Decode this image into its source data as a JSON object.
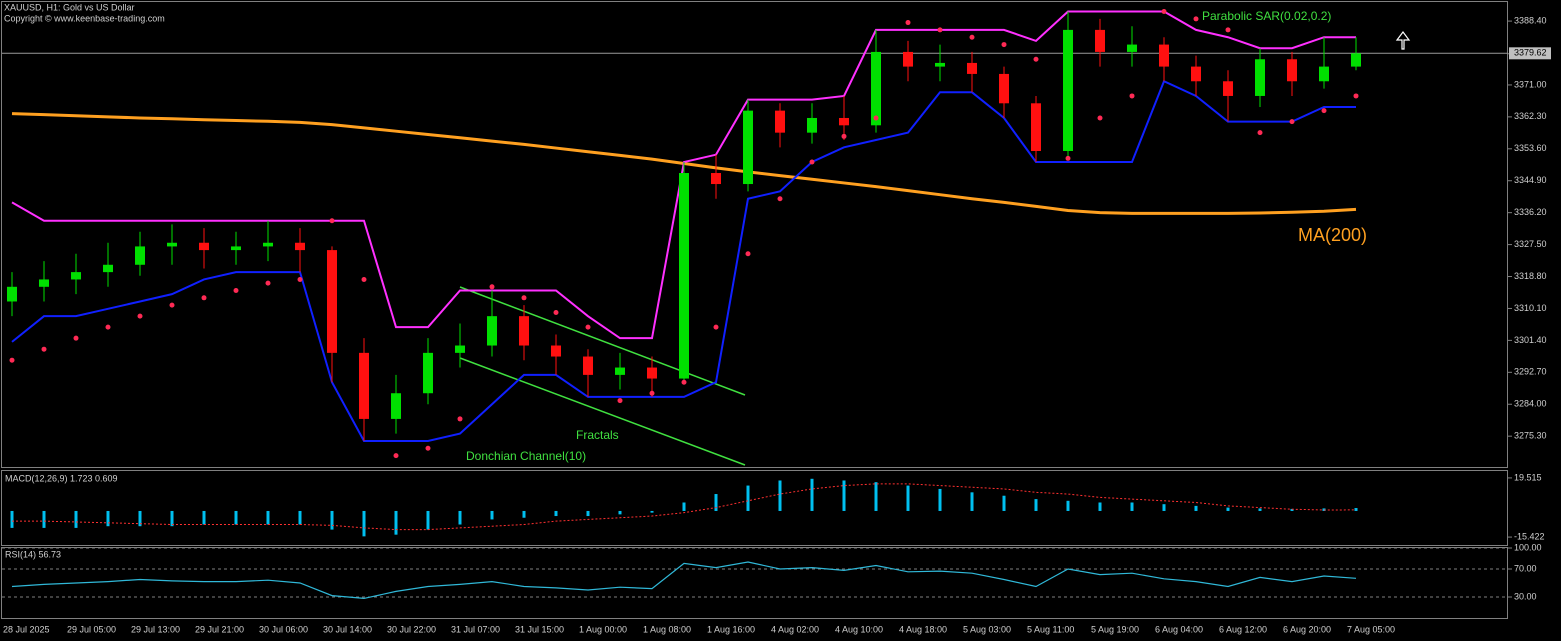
{
  "chart_data": [
    {
      "type": "candlestick",
      "title": "XAUUSD, H1:  Gold vs US Dollar",
      "subtitle": "Copyright © www.keenbase-trading.com",
      "categories": [
        "28 Jul 2025",
        null,
        "29 Jul 05:00",
        null,
        "29 Jul 13:00",
        null,
        "29 Jul 21:00",
        null,
        "30 Jul 06:00",
        null,
        "30 Jul 14:00",
        null,
        "30 Jul 22:00",
        null,
        "31 Jul 07:00",
        null,
        "31 Jul 15:00",
        null,
        "1 Aug 00:00",
        null,
        "1 Aug 08:00",
        null,
        "1 Aug 16:00",
        null,
        "4 Aug 02:00",
        null,
        "4 Aug 10:00",
        null,
        "4 Aug 18:00",
        null,
        "5 Aug 03:00",
        null,
        "5 Aug 11:00",
        null,
        "5 Aug 19:00",
        null,
        "6 Aug 04:00",
        null,
        "6 Aug 12:00",
        null,
        "6 Aug 20:00",
        null,
        "7 Aug 05:00"
      ],
      "open": [
        3312,
        3316,
        3318,
        3320,
        3322,
        3327,
        3328,
        3326,
        3327,
        3328,
        3326,
        3298,
        3280,
        3287,
        3298,
        3300,
        3308,
        3300,
        3297,
        3292,
        3294,
        3291,
        3347,
        3344,
        3364,
        3358,
        3362,
        3360,
        3380,
        3376,
        3377,
        3374,
        3366,
        3353,
        3386,
        3380,
        3382,
        3376,
        3372,
        3368,
        3378,
        3372,
        3376
      ],
      "high": [
        3320,
        3323,
        3325,
        3328,
        3331,
        3333,
        3332,
        3331,
        3334,
        3332,
        3327,
        3302,
        3292,
        3302,
        3306,
        3315,
        3311,
        3303,
        3299,
        3298,
        3297,
        3350,
        3352,
        3367,
        3366,
        3366,
        3368,
        3386,
        3383,
        3382,
        3380,
        3376,
        3368,
        3391,
        3389,
        3387,
        3384,
        3379,
        3375,
        3381,
        3380,
        3384,
        3384
      ],
      "low": [
        3308,
        3312,
        3314,
        3316,
        3319,
        3322,
        3321,
        3322,
        3323,
        3320,
        3290,
        3274,
        3276,
        3284,
        3294,
        3297,
        3296,
        3292,
        3286,
        3288,
        3286,
        3290,
        3340,
        3342,
        3354,
        3355,
        3356,
        3358,
        3372,
        3372,
        3369,
        3362,
        3350,
        3351,
        3376,
        3376,
        3372,
        3368,
        3361,
        3365,
        3368,
        3370,
        3375
      ],
      "close": [
        3316,
        3318,
        3320,
        3322,
        3327,
        3328,
        3326,
        3327,
        3328,
        3326,
        3298,
        3280,
        3287,
        3298,
        3300,
        3308,
        3300,
        3297,
        3292,
        3294,
        3291,
        3347,
        3344,
        3364,
        3358,
        3362,
        3360,
        3380,
        3376,
        3377,
        3374,
        3366,
        3353,
        3386,
        3380,
        3382,
        3376,
        3372,
        3368,
        3378,
        3372,
        3376,
        3379.62
      ],
      "up_color": "#00e000",
      "down_color": "#ff1010",
      "overlays": [
        {
          "name": "MA(200)",
          "kind": "line",
          "color": "#ffa020",
          "values": [
            3363.2,
            3362.9,
            3362.6,
            3362.3,
            3362,
            3361.8,
            3361.5,
            3361.3,
            3361.1,
            3360.8,
            3360.2,
            3359.3,
            3358.4,
            3357.5,
            3356.6,
            3355.7,
            3354.8,
            3353.8,
            3352.8,
            3351.8,
            3350.8,
            3349.6,
            3348.4,
            3347.3,
            3346.3,
            3345.3,
            3344.3,
            3343.3,
            3342.2,
            3341.1,
            3340,
            3339,
            3337.9,
            3336.8,
            3336.2,
            3336,
            3336,
            3336,
            3336,
            3336.1,
            3336.3,
            3336.6,
            3337.1
          ]
        },
        {
          "name": "Parabolic SAR(0.02,0.2)",
          "kind": "dots",
          "color": "#ff2a55",
          "values": [
            3296,
            3299,
            3302,
            3305,
            3308,
            3311,
            3313,
            3315,
            3317,
            3318,
            3334,
            3318,
            3270,
            3272,
            3280,
            3316,
            3313,
            3309,
            3305,
            3285,
            3287,
            3290,
            3305,
            3325,
            3340,
            3350,
            3357,
            3362,
            3388,
            3386,
            3384,
            3382,
            3378,
            3351,
            3362,
            3368,
            3391,
            3389,
            3386,
            3358,
            3361,
            3364,
            3368
          ]
        },
        {
          "name": "Donchian Channel(10)",
          "kind": "band",
          "color": "#ff30ff",
          "lower_color": "#1020ff",
          "upper": [
            3339,
            3334,
            3334,
            3334,
            3334,
            3334,
            3334,
            3334,
            3334,
            3334,
            3334,
            3334,
            3305,
            3305,
            3315,
            3315,
            3315,
            3315,
            3308,
            3302,
            3302,
            3350,
            3352,
            3367,
            3367,
            3367,
            3368,
            3386,
            3386,
            3386,
            3386,
            3386,
            3383,
            3391,
            3391,
            3391,
            3391,
            3386,
            3384,
            3381,
            3381,
            3384,
            3384
          ],
          "lower": [
            3301,
            3308,
            3308,
            3310,
            3312,
            3314,
            3318,
            3320,
            3320,
            3320,
            3290,
            3274,
            3274,
            3274,
            3276,
            3284,
            3292,
            3292,
            3286,
            3286,
            3286,
            3286,
            3290,
            3340,
            3342,
            3350,
            3354,
            3356,
            3358,
            3369,
            3369,
            3362,
            3350,
            3350,
            3350,
            3350,
            3372,
            3368,
            3361,
            3361,
            3361,
            3365,
            3365
          ]
        }
      ],
      "annotations": [
        "Fractals"
      ],
      "last_price": 3379.62,
      "ylim": [
        3266.9,
        3393.6
      ],
      "yticks": [
        {
          "value": 3388.4,
          "label": "3388.40"
        },
        {
          "value": 3379.5,
          "label": "3379.50"
        },
        {
          "value": 3371,
          "label": "3371.00"
        },
        {
          "value": 3362.3,
          "label": "3362.30"
        },
        {
          "value": 3353.6,
          "label": "3353.60"
        },
        {
          "value": 3344.9,
          "label": "3344.90"
        },
        {
          "value": 3336.2,
          "label": "3336.20"
        },
        {
          "value": 3327.5,
          "label": "3327.50"
        },
        {
          "value": 3318.8,
          "label": "3318.80"
        },
        {
          "value": 3310.1,
          "label": "3310.10"
        },
        {
          "value": 3301.4,
          "label": "3301.40"
        },
        {
          "value": 3292.7,
          "label": "3292.70"
        },
        {
          "value": 3284,
          "label": "3284.00"
        },
        {
          "value": 3275.3,
          "label": "3275.30"
        }
      ]
    },
    {
      "type": "macd",
      "title": "MACD(12,26,9) 1.723 0.609",
      "values": [
        -10,
        -10,
        -10,
        -9,
        -9,
        -9,
        -8,
        -8,
        -8,
        -8,
        -11,
        -15,
        -14,
        -11,
        -8,
        -5,
        -4,
        -3,
        -3,
        -2,
        -1,
        5,
        10,
        15,
        18,
        19,
        18,
        17,
        15,
        13,
        11,
        9,
        7,
        6,
        5,
        5,
        4,
        3,
        2,
        1.5,
        1.2,
        1.5,
        1.723
      ],
      "signal": [
        -6,
        -6,
        -6.5,
        -7,
        -7.5,
        -8,
        -8,
        -8,
        -8,
        -8,
        -8.5,
        -10,
        -11,
        -11,
        -10,
        -9,
        -8,
        -6,
        -5,
        -4,
        -3,
        -1,
        2,
        6,
        10,
        13,
        15,
        16,
        16,
        15,
        14,
        13,
        11,
        10,
        8,
        7,
        6,
        5,
        3,
        2,
        1,
        0.6,
        0.609
      ],
      "color": "#00c0f0",
      "signal_color": "#ff3030",
      "ylim": [
        -20.1,
        23.6
      ],
      "yticks": [
        19.515,
        -15.422
      ]
    },
    {
      "type": "line",
      "title": "RSI(14) 56.73",
      "values": [
        45,
        48,
        50,
        52,
        55,
        53,
        52,
        52,
        54,
        50,
        32,
        28,
        38,
        45,
        48,
        52,
        45,
        43,
        40,
        44,
        42,
        78,
        72,
        80,
        70,
        72,
        68,
        75,
        66,
        67,
        64,
        55,
        45,
        70,
        62,
        64,
        56,
        52,
        45,
        58,
        52,
        60,
        56.73
      ],
      "color": "#30b8d8",
      "ylim": [
        0,
        100
      ],
      "yticks": [
        {
          "value": 100,
          "label": "100.00"
        },
        {
          "value": 70,
          "label": "70.00"
        },
        {
          "value": 30,
          "label": "30.00"
        }
      ],
      "grid": true
    }
  ]
}
